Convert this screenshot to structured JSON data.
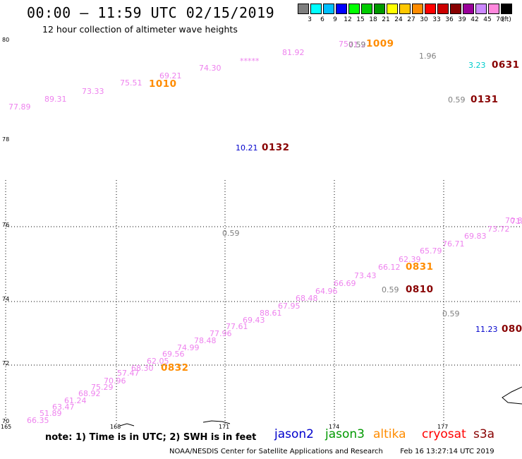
{
  "header": {
    "title": "00:00 – 11:59 UTC 02/15/2019",
    "subtitle": "12 hour collection of altimeter wave heights"
  },
  "colorbar": {
    "colors": [
      "#7f7f7f",
      "#00ffff",
      "#00bfff",
      "#0000ff",
      "#00ff00",
      "#00cc00",
      "#009900",
      "#ffff00",
      "#ffc800",
      "#ff8c00",
      "#ff0000",
      "#cc0000",
      "#880000",
      "#990099",
      "#cc88ff",
      "#ff88dd",
      "#000000"
    ],
    "labels": [
      "3",
      "6",
      "9",
      "12",
      "15",
      "18",
      "21",
      "24",
      "27",
      "30",
      "33",
      "36",
      "39",
      "42",
      "45",
      "70"
    ],
    "unit": "(ft)"
  },
  "axes": {
    "lat_labels": [
      "80",
      "78",
      "76",
      "74",
      "72",
      "70"
    ],
    "lon_labels": [
      "165",
      "168",
      "171",
      "174",
      "177"
    ]
  },
  "tracks": [
    {
      "color": "#ee82ee",
      "values": [
        "77.89",
        "89.31",
        "73.33",
        "75.51",
        "69.21",
        "74.30",
        "*****",
        "81.92",
        "75.",
        "71.2",
        "70.8",
        "69.83",
        "73.72",
        "71.",
        "66.35",
        "51.89",
        "63.47",
        "61.24",
        "68.92",
        "75.29",
        "70.96",
        "57.47",
        "68.30",
        "62.05",
        "69.56",
        "74.99",
        "78.48",
        "77.96",
        "77.61",
        "69.43",
        "88.61",
        "67.95",
        "68.48",
        "64.96",
        "66.69",
        "73.43",
        "66.12",
        "62.39",
        "65.79",
        "76.71"
      ]
    },
    {
      "color": "#808080",
      "values": [
        "0.59",
        "1.96",
        "0.59",
        "0.59",
        "0.59",
        "0.59"
      ]
    },
    {
      "color": "#00cccc",
      "values": [
        "3.23"
      ]
    },
    {
      "color": "#0000cc",
      "values": [
        "10.21",
        "11.23"
      ]
    }
  ],
  "times": [
    {
      "text": "1009",
      "color": "#ff8c00"
    },
    {
      "text": "1010",
      "color": "#ff8c00"
    },
    {
      "text": "0631",
      "color": "#880000"
    },
    {
      "text": "0131",
      "color": "#880000"
    },
    {
      "text": "0132",
      "color": "#880000"
    },
    {
      "text": "0831",
      "color": "#ff8c00"
    },
    {
      "text": "0810",
      "color": "#880000"
    },
    {
      "text": "0832",
      "color": "#ff8c00"
    },
    {
      "text": "080",
      "color": "#880000"
    }
  ],
  "legend": {
    "note": "note: 1) Time is in UTC; 2) SWH is in feet",
    "missions": [
      {
        "name": "jason2",
        "color": "#0000cc"
      },
      {
        "name": "jason3",
        "color": "#009900"
      },
      {
        "name": "altika",
        "color": "#ff8c00"
      },
      {
        "name": "cryosat",
        "color": "#ff0000"
      },
      {
        "name": "s3a",
        "color": "#880000"
      }
    ]
  },
  "footer": {
    "credit": "NOAA/NESDIS Center for Satellite Applications and Research",
    "generated": "Feb 16 13:27:14 UTC 2019"
  }
}
